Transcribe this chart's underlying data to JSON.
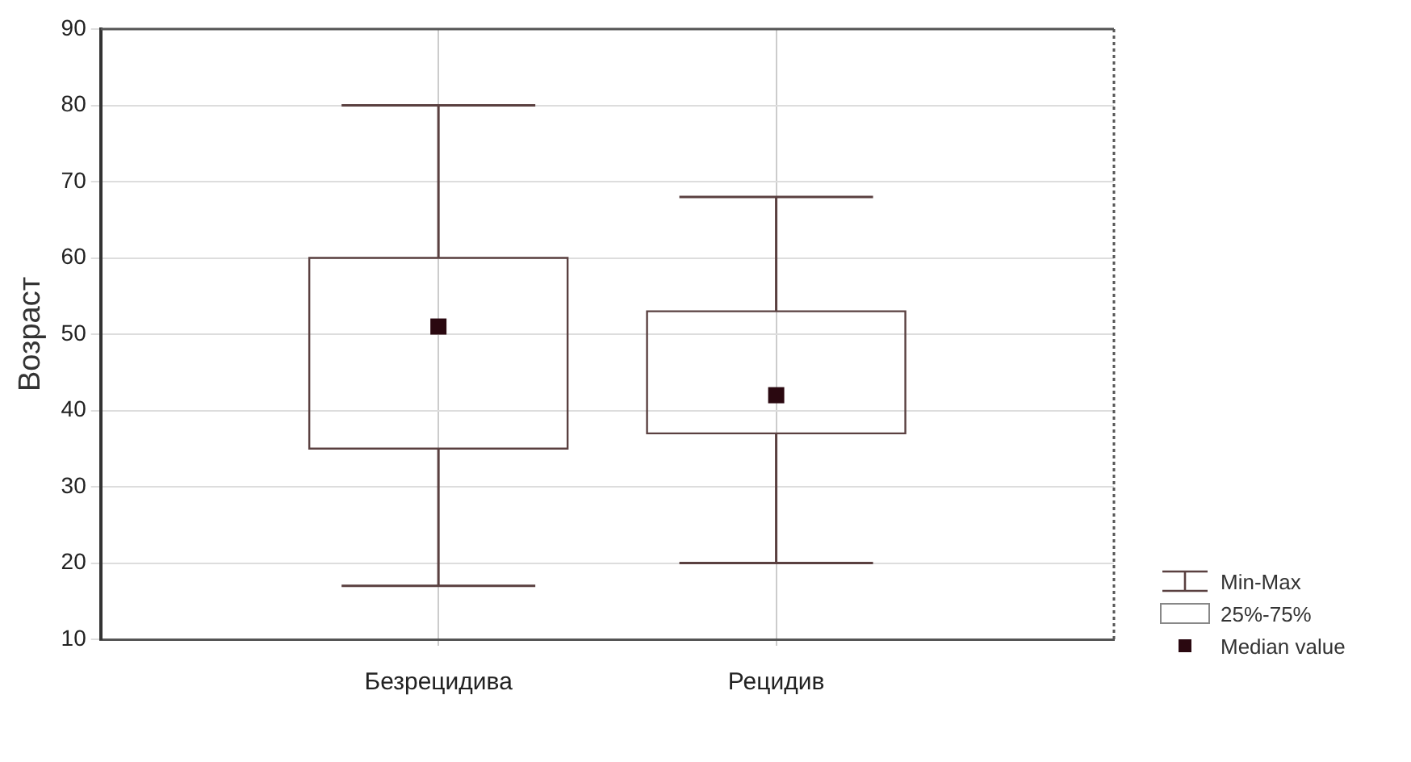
{
  "chart_data": {
    "type": "box",
    "ylabel": "Возраст",
    "categories": [
      "Безрецидива",
      "Рецидив"
    ],
    "ylim": [
      10,
      90
    ],
    "yticks": [
      10,
      20,
      30,
      40,
      50,
      60,
      70,
      80,
      90
    ],
    "grid": true,
    "color": "#5a4040",
    "boxes": [
      {
        "low": 17,
        "q1": 35,
        "median": 51,
        "q3": 60,
        "high": 80
      },
      {
        "low": 20,
        "q1": 37,
        "median": 42,
        "q3": 53,
        "high": 68
      }
    ],
    "annotations": [
      "Min-Max",
      "25%-75%",
      "Median value"
    ]
  }
}
